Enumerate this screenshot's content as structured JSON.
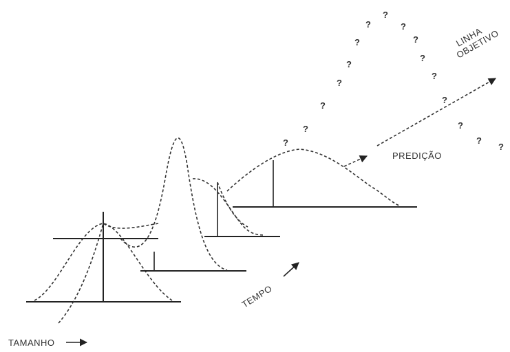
{
  "labels": {
    "linha": "LINHA",
    "objetivo": "OBJETIVO",
    "predicao": "PREDIÇÃO",
    "tempo": "TEMPO",
    "tamanho": "TAMANHO"
  },
  "colors": {
    "ink": "#222222",
    "background": "#ffffff"
  },
  "glyphs": {
    "uncertainty_mark": "?",
    "arrow": "→"
  }
}
